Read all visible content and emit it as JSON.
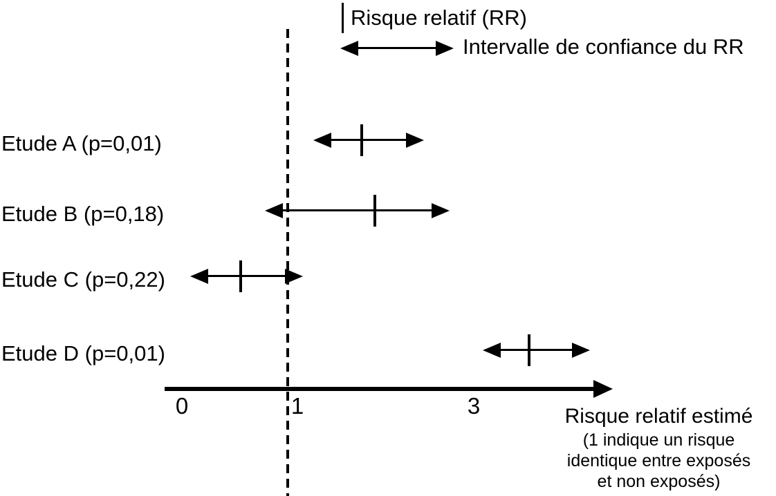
{
  "colors": {
    "ink": "#000000",
    "background": "#ffffff"
  },
  "chart_data": {
    "type": "scatter",
    "variant": "forest-plot",
    "title": "",
    "legend": {
      "rr": "Risque relatif (RR)",
      "ci": "Intervalle de confiance du RR"
    },
    "axis": {
      "label": "Risque relatif estimé",
      "note_lines": [
        "(1 indique un risque",
        "identique entre exposés",
        "et non exposés)"
      ],
      "tick_labels": [
        "0",
        "1",
        "3"
      ],
      "ticks": [
        0,
        1,
        3
      ],
      "xlim": [
        0,
        4.5
      ],
      "reference_line_x": 1,
      "grid": false
    },
    "studies": [
      {
        "name": "Etude A",
        "p": "p=0,01",
        "label": "Etude A (p=0,01)",
        "rr": 1.79,
        "ci_low": 1.27,
        "ci_high": 2.46
      },
      {
        "name": "Etude B",
        "p": "p=0,18",
        "label": "Etude B (p=0,18)",
        "rr": 1.93,
        "ci_low": 0.78,
        "ci_high": 2.74
      },
      {
        "name": "Etude C",
        "p": "p=0,22",
        "label": "Etude C (p=0,22)",
        "rr": 0.55,
        "ci_low": 0.08,
        "ci_high": 1.16
      },
      {
        "name": "Etude D",
        "p": "p=0,01",
        "label": "Etude D (p=0,01)",
        "rr": 3.6,
        "ci_low": 3.1,
        "ci_high": 4.25
      }
    ]
  }
}
